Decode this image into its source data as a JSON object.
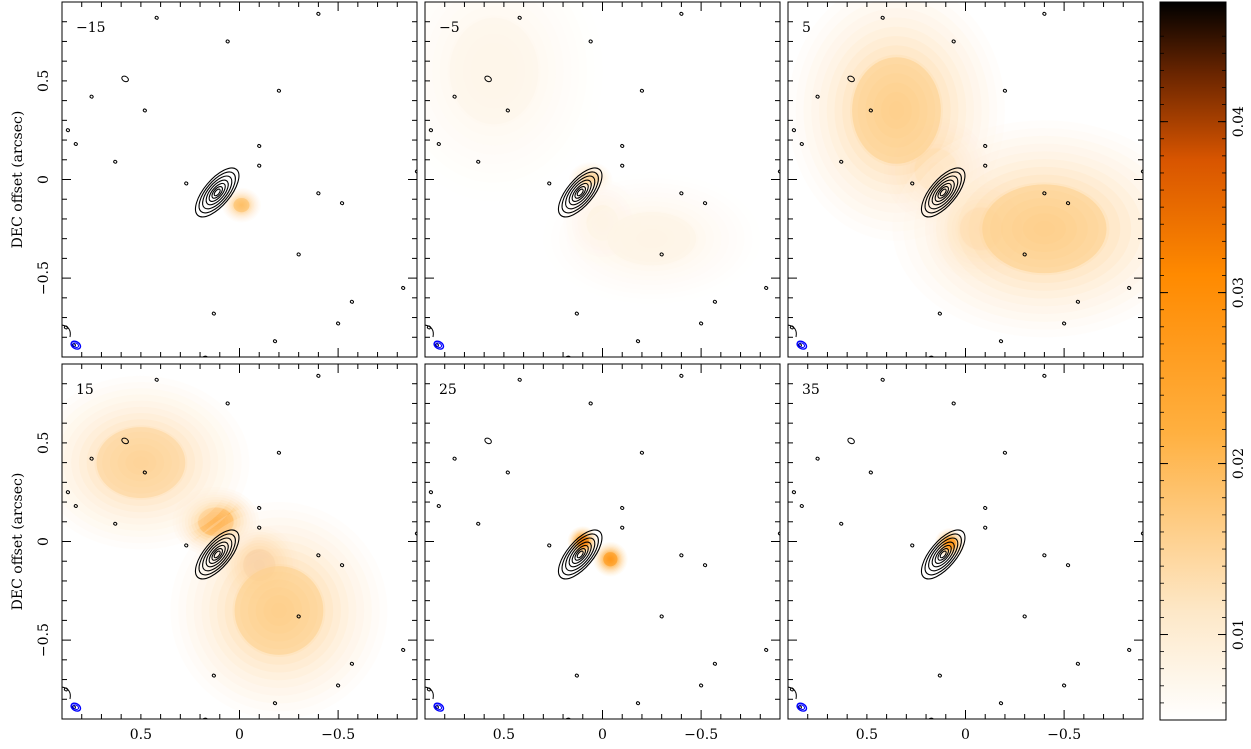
{
  "chart_data": {
    "type": "heatmap",
    "panels": [
      {
        "label": "−15",
        "velocity": -15,
        "lobes": [
          {
            "x": -0.01,
            "y": -0.13,
            "sx": 0.045,
            "sy": 0.04,
            "amp": 0.014
          }
        ]
      },
      {
        "label": "−5",
        "velocity": -5,
        "lobes": [
          {
            "x": 0.06,
            "y": 0.0,
            "sx": 0.05,
            "sy": 0.04,
            "amp": 0.01
          },
          {
            "x": 0.0,
            "y": -0.22,
            "sx": 0.09,
            "sy": 0.1,
            "amp": 0.008
          },
          {
            "x": -0.25,
            "y": -0.3,
            "sx": 0.25,
            "sy": 0.15,
            "amp": 0.003
          },
          {
            "x": 0.55,
            "y": 0.55,
            "sx": 0.25,
            "sy": 0.3,
            "amp": 0.0025
          }
        ]
      },
      {
        "label": "5",
        "velocity": 5,
        "lobes": [
          {
            "x": 0.15,
            "y": 0.05,
            "sx": 0.12,
            "sy": 0.12,
            "amp": 0.018
          },
          {
            "x": 0.35,
            "y": 0.35,
            "sx": 0.25,
            "sy": 0.3,
            "amp": 0.011
          },
          {
            "x": -0.08,
            "y": -0.25,
            "sx": 0.12,
            "sy": 0.12,
            "amp": 0.017
          },
          {
            "x": -0.4,
            "y": -0.25,
            "sx": 0.35,
            "sy": 0.25,
            "amp": 0.011
          }
        ]
      },
      {
        "label": "15",
        "velocity": 15,
        "lobes": [
          {
            "x": -0.1,
            "y": -0.12,
            "sx": 0.09,
            "sy": 0.09,
            "amp": 0.03
          },
          {
            "x": 0.12,
            "y": 0.1,
            "sx": 0.1,
            "sy": 0.08,
            "amp": 0.02
          },
          {
            "x": 0.5,
            "y": 0.4,
            "sx": 0.25,
            "sy": 0.2,
            "amp": 0.01
          },
          {
            "x": -0.2,
            "y": -0.35,
            "sx": 0.25,
            "sy": 0.25,
            "amp": 0.011
          }
        ]
      },
      {
        "label": "25",
        "velocity": 25,
        "lobes": [
          {
            "x": 0.1,
            "y": -0.0,
            "sx": 0.035,
            "sy": 0.035,
            "amp": 0.028
          },
          {
            "x": -0.04,
            "y": -0.09,
            "sx": 0.04,
            "sy": 0.04,
            "amp": 0.023
          }
        ]
      },
      {
        "label": "35",
        "velocity": 35,
        "lobes": [
          {
            "x": 0.08,
            "y": -0.01,
            "sx": 0.035,
            "sy": 0.035,
            "amp": 0.024
          }
        ]
      }
    ],
    "xlim": [
      0.9,
      -0.9
    ],
    "ylim": [
      -0.9,
      0.9
    ],
    "xticks": [
      0.5,
      0,
      -0.5
    ],
    "yticks": [
      0.5,
      0,
      -0.5
    ],
    "xtick_labels": [
      "0.5",
      "0",
      "−0.5"
    ],
    "ytick_labels": [
      "0.5",
      "0",
      "−0.5"
    ],
    "xlabel": "",
    "ylabel": "DEC offset (arcsec)",
    "colorbar": {
      "range": [
        0.005,
        0.047
      ],
      "ticks": [
        0.01,
        0.02,
        0.03,
        0.04
      ],
      "tick_labels": [
        "0.01",
        "0.02",
        "0.03",
        "0.04"
      ]
    },
    "contour_source": {
      "x": 0.1,
      "y": -0.05,
      "pa_deg": 40
    },
    "beam": {
      "x": 0.83,
      "y": -0.84,
      "colour": "#0000ff"
    },
    "colours": {
      "low": "#ffffff",
      "mid": "#ff8c00",
      "high": "#000000"
    }
  }
}
